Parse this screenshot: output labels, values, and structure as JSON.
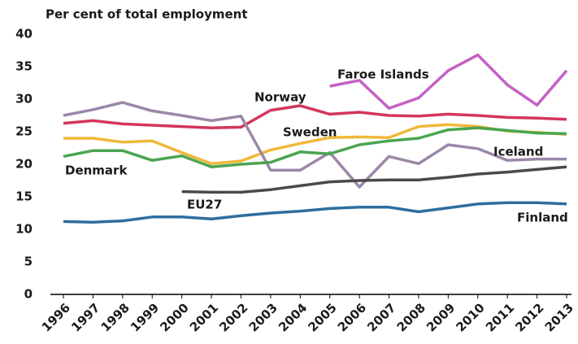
{
  "chart_data": {
    "type": "line",
    "y_axis_label": "Per cent of total employment",
    "x": [
      "1996",
      "1997",
      "1998",
      "1999",
      "2000",
      "2001",
      "2002",
      "2003",
      "2004",
      "2005",
      "2006",
      "2007",
      "2008",
      "2009",
      "2010",
      "2011",
      "2012",
      "2013"
    ],
    "ylim": [
      0,
      40
    ],
    "yticks": [
      0,
      5,
      10,
      15,
      20,
      25,
      30,
      35,
      40
    ],
    "grid": false,
    "series": [
      {
        "name": "Faroe Islands",
        "color": "#c561c5",
        "values": [
          null,
          null,
          null,
          null,
          null,
          null,
          null,
          null,
          null,
          32.0,
          32.9,
          28.6,
          30.2,
          34.4,
          36.8,
          32.2,
          29.1,
          34.4
        ]
      },
      {
        "name": "Norway",
        "color": "#d3365a",
        "values": [
          26.3,
          26.7,
          26.2,
          26.0,
          25.8,
          25.6,
          25.7,
          28.3,
          29.0,
          27.7,
          28.0,
          27.5,
          27.4,
          27.7,
          27.5,
          27.2,
          27.1,
          26.9
        ]
      },
      {
        "name": "Sweden",
        "color": "#f0b83a",
        "values": [
          24.0,
          24.0,
          23.4,
          23.6,
          21.8,
          20.1,
          20.5,
          22.2,
          23.2,
          24.1,
          24.2,
          24.1,
          25.8,
          26.1,
          25.8,
          25.1,
          24.9,
          24.6
        ]
      },
      {
        "name": "Iceland",
        "color": "#9b88a8",
        "values": [
          27.5,
          28.4,
          29.5,
          28.2,
          27.5,
          26.7,
          27.4,
          19.1,
          19.1,
          21.8,
          16.5,
          21.2,
          20.1,
          23.0,
          22.4,
          20.6,
          20.8,
          20.8
        ]
      },
      {
        "name": "Denmark",
        "color": "#4aa550",
        "values": [
          21.2,
          22.1,
          22.1,
          20.6,
          21.3,
          19.6,
          20.0,
          20.3,
          21.9,
          21.6,
          23.0,
          23.6,
          24.0,
          25.3,
          25.6,
          25.2,
          24.8,
          24.7
        ]
      },
      {
        "name": "EU27",
        "color": "#4a4a4a",
        "values": [
          null,
          null,
          null,
          null,
          15.8,
          15.7,
          15.7,
          16.1,
          16.7,
          17.3,
          17.5,
          17.6,
          17.6,
          18.0,
          18.5,
          18.8,
          19.2,
          19.6
        ]
      },
      {
        "name": "Finland",
        "color": "#2e6e9e",
        "values": [
          11.2,
          11.1,
          11.3,
          11.9,
          11.9,
          11.6,
          12.1,
          12.5,
          12.8,
          13.2,
          13.4,
          13.4,
          12.7,
          13.3,
          13.9,
          14.1,
          14.1,
          13.9
        ]
      }
    ]
  }
}
